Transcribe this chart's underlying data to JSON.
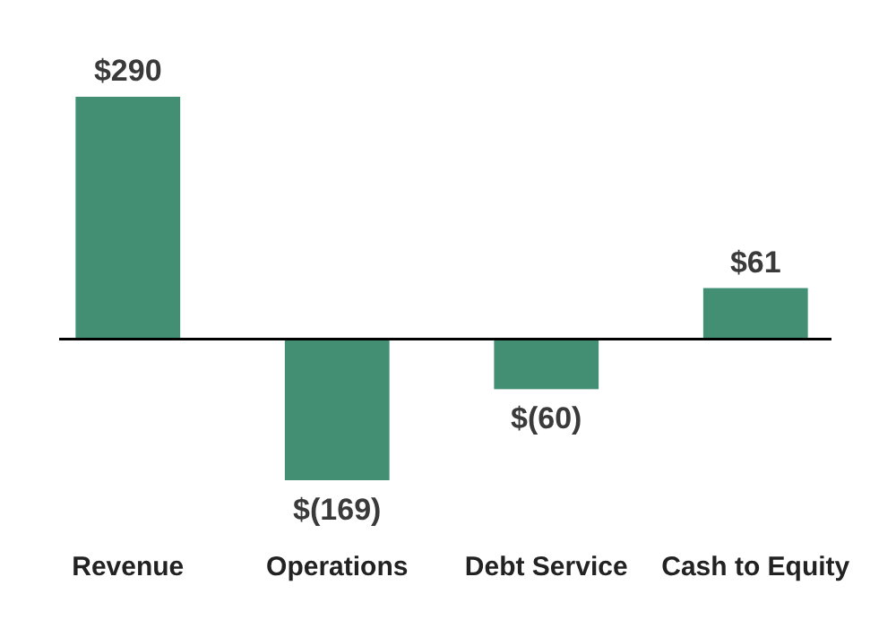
{
  "chart_data": {
    "type": "bar",
    "categories": [
      "Revenue",
      "Operations",
      "Debt Service",
      "Cash to Equity"
    ],
    "values": [
      290,
      -169,
      -60,
      61
    ],
    "value_labels": [
      "$290",
      "$(169)",
      "$(60)",
      "$61"
    ],
    "color": "#428f74"
  }
}
